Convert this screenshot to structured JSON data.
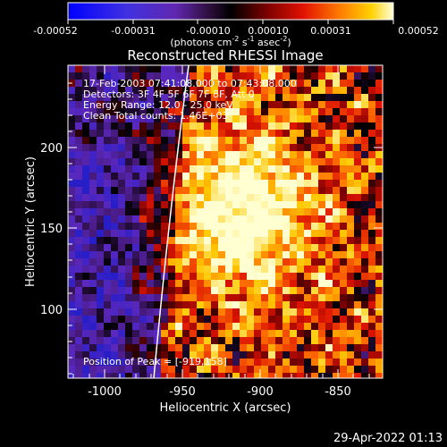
{
  "colorbar": {
    "ticks": [
      "-0.00052",
      "-0.00031",
      "-0.00010",
      "0.00010",
      "0.00031",
      "0.00052"
    ],
    "unit_label": {
      "t1": "(photons cm",
      "s1": "-2",
      "t2": " s",
      "s2": "-1",
      "t3": " asec",
      "s3": "-2",
      "t4": ")"
    }
  },
  "plot": {
    "title": "Reconstructed RHESSI Image",
    "info_lines": [
      "17-Feb-2003 07:41:08.000 to 07:43:08.000",
      "Detectors: 3F 4F 5F 6F 7F 8F, Att 0",
      "Energy Range: 12.0 - 25.0 keV",
      "Clean     Total counts: 1.46E+03"
    ],
    "peak_label": "Position of Peak = [-919,158]",
    "xlabel": "Heliocentric X (arcsec)",
    "ylabel": "Heliocentric Y (arcsec)",
    "x_ticks": [
      "-1000",
      "-950",
      "-900",
      "-850"
    ],
    "y_ticks": [
      "100",
      "150",
      "200"
    ]
  },
  "timestamp": "29-Apr-2022 01:13",
  "colors": {
    "background": "#000000",
    "limb_line": "#ffffff"
  }
}
